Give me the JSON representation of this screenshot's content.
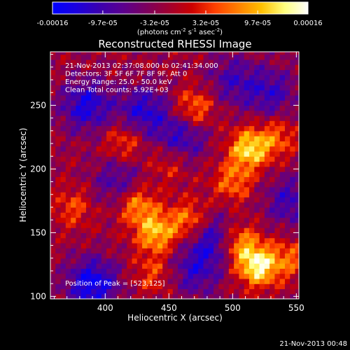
{
  "colorbar": {
    "tick_labels": [
      "-0.00016",
      "-9.7e-05",
      "-3.2e-05",
      "3.2e-05",
      "9.7e-05",
      "0.00016"
    ],
    "tick_values": [
      -0.00016,
      -9.7e-05,
      -3.2e-05,
      3.2e-05,
      9.7e-05,
      0.00016
    ],
    "range": [
      -0.00016,
      0.00016
    ],
    "unit_label": "(photons cm",
    "unit_exp1": "-2",
    "unit_mid": " s",
    "unit_exp2": "-1",
    "unit_mid2": " asec",
    "unit_exp3": "-2",
    "unit_end": ")",
    "gradient_colors": [
      "#0000ff",
      "#1a00e0",
      "#3a00b0",
      "#5a0090",
      "#7a0060",
      "#a00030",
      "#cc0000",
      "#ff4000",
      "#ff8000",
      "#ffc000",
      "#ffff80",
      "#ffffff"
    ]
  },
  "chart_data": {
    "type": "heatmap",
    "title": "Reconstructed RHESSI Image",
    "xlabel": "Heliocentric X (arcsec)",
    "ylabel": "Heliocentric Y (arcsec)",
    "xlim": [
      357,
      552
    ],
    "ylim": [
      98,
      292
    ],
    "xticks": [
      400,
      450,
      500,
      550
    ],
    "xtick_labels": [
      "400",
      "450",
      "500",
      "550"
    ],
    "yticks": [
      100,
      150,
      200,
      250
    ],
    "ytick_labels": [
      "100",
      "150",
      "200",
      "250"
    ],
    "annotations": [
      "21-Nov-2013 02:37:08.000 to 02:41:34.000",
      "Detectors: 3F 5F 6F 7F 8F 9F, Att 0",
      "Energy Range: 25.0 - 50.0 keV",
      "Clean     Total counts: 5.92E+03"
    ],
    "peak_label": "Position of Peak = [523,125]",
    "peak": [
      523,
      125
    ],
    "hotspots": [
      {
        "x": 520,
        "y": 124,
        "value": 0.00016
      },
      {
        "x": 505,
        "y": 142,
        "value": 0.00011
      },
      {
        "x": 513,
        "y": 216,
        "value": 0.00014
      },
      {
        "x": 440,
        "y": 150,
        "value": 0.00012
      },
      {
        "x": 425,
        "y": 172,
        "value": 0.0001
      },
      {
        "x": 466,
        "y": 160,
        "value": 9e-05
      },
      {
        "x": 470,
        "y": 248,
        "value": 9e-05
      },
      {
        "x": 500,
        "y": 190,
        "value": 8e-05
      },
      {
        "x": 545,
        "y": 130,
        "value": 7e-05
      },
      {
        "x": 415,
        "y": 222,
        "value": 7e-05
      },
      {
        "x": 438,
        "y": 118,
        "value": 6e-05
      },
      {
        "x": 375,
        "y": 170,
        "value": 6e-05
      },
      {
        "x": 535,
        "y": 225,
        "value": 7e-05
      },
      {
        "x": 450,
        "y": 205,
        "value": 5e-05
      }
    ],
    "coldspots": [
      {
        "x": 390,
        "y": 110,
        "value": -0.00013
      },
      {
        "x": 385,
        "y": 250,
        "value": -0.00011
      },
      {
        "x": 430,
        "y": 245,
        "value": -0.0001
      },
      {
        "x": 460,
        "y": 225,
        "value": -9e-05
      },
      {
        "x": 485,
        "y": 145,
        "value": -0.0001
      },
      {
        "x": 545,
        "y": 175,
        "value": -8e-05
      },
      {
        "x": 470,
        "y": 120,
        "value": -8e-05
      },
      {
        "x": 410,
        "y": 190,
        "value": -7e-05
      },
      {
        "x": 530,
        "y": 260,
        "value": -8e-05
      },
      {
        "x": 500,
        "y": 270,
        "value": -7e-05
      }
    ]
  },
  "footer": {
    "timestamp": "21-Nov-2013 00:48"
  }
}
